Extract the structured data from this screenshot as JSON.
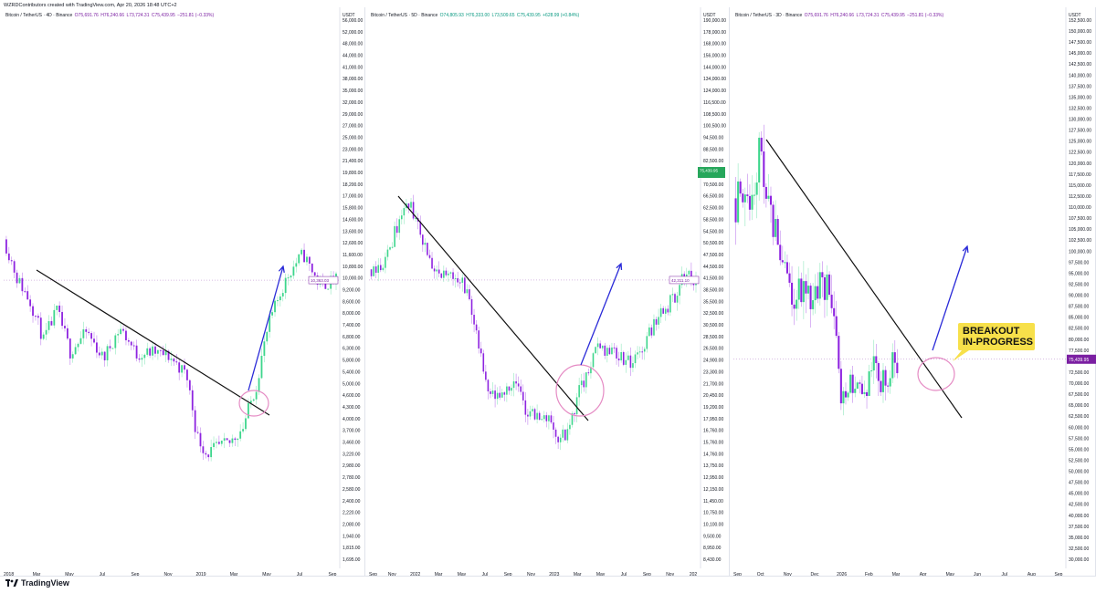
{
  "credit": "WZRDContributors created with TradingView.com, Apr 20, 2026 18:48 UTC+2",
  "brand": "TradingView",
  "colors": {
    "up": "#3dd68c",
    "down": "#8e24e0",
    "trend": "#111111",
    "arrow": "#2a2ad8",
    "circle": "#e58bc4",
    "label_bg": "#f7e04a"
  },
  "panels": [
    {
      "id": "p1",
      "header": {
        "pair": "Bitcoin / TetherUS · 4D · Binance",
        "o": "O75,691.76",
        "h": "H76,240.66",
        "l": "L73,724.31",
        "c": "C75,439.95",
        "chg": "−251.81 (−0.33%)"
      },
      "unit": "USDT",
      "y_ticks": [
        "56,000.00",
        "52,000.00",
        "48,000.00",
        "44,000.00",
        "41,000.00",
        "38,000.00",
        "35,000.00",
        "32,000.00",
        "29,000.00",
        "27,000.00",
        "25,000.00",
        "23,000.00",
        "21,400.00",
        "19,800.00",
        "18,200.00",
        "17,000.00",
        "15,800.00",
        "14,600.00",
        "13,600.00",
        "12,600.00",
        "11,600.00",
        "10,800.00",
        "10,000.00",
        "9,200.00",
        "8,600.00",
        "8,000.00",
        "7,400.00",
        "6,800.00",
        "6,300.00",
        "5,800.00",
        "5,400.00",
        "5,000.00",
        "4,600.00",
        "4,300.00",
        "4,000.00",
        "3,700.00",
        "3,460.00",
        "3,220.00",
        "2,980.00",
        "2,780.00",
        "2,580.00",
        "2,400.00",
        "2,220.00",
        "2,080.00",
        "1,940.00",
        "1,815.00",
        "1,695.00"
      ],
      "x_ticks": [
        "2018",
        "Mar",
        "May",
        "Jul",
        "Sep",
        "Nov",
        "2019",
        "Mar",
        "May",
        "Jul",
        "Sep"
      ],
      "price_tag": "10,363.03"
    },
    {
      "id": "p2",
      "header": {
        "pair": "Bitcoin / TetherUS · 5D · Binance",
        "o": "O74,805.93",
        "h": "H76,333.00",
        "l": "L73,509.65",
        "c": "C75,439.95",
        "chg": "+628.99 (+0.84%)"
      },
      "unit": "USDT",
      "y_ticks": [
        "190,000.00",
        "178,000.00",
        "168,000.00",
        "156,000.00",
        "144,000.00",
        "134,000.00",
        "124,000.00",
        "116,500.00",
        "108,500.00",
        "100,500.00",
        "94,500.00",
        "88,500.00",
        "82,500.00",
        "75,439.95",
        "70,500.00",
        "66,500.00",
        "62,500.00",
        "58,500.00",
        "54,500.00",
        "50,500.00",
        "47,500.00",
        "44,500.00",
        "41,500.00",
        "38,500.00",
        "35,500.00",
        "32,500.00",
        "30,500.00",
        "28,500.00",
        "26,500.00",
        "24,900.00",
        "23,300.00",
        "21,700.00",
        "20,450.00",
        "19,200.00",
        "17,950.00",
        "16,760.00",
        "15,760.00",
        "14,760.00",
        "13,750.00",
        "12,950.00",
        "12,150.00",
        "11,450.00",
        "10,750.00",
        "10,100.00",
        "9,500.00",
        "8,950.00",
        "8,430.00"
      ],
      "x_ticks": [
        "Sep",
        "Nov",
        "2022",
        "Mar",
        "May",
        "Jul",
        "Sep",
        "Nov",
        "2023",
        "Mar",
        "May",
        "Jul",
        "Sep",
        "Nov",
        "202"
      ],
      "price_tag": "42,311.10"
    },
    {
      "id": "p3",
      "header": {
        "pair": "Bitcoin / TetherUS · 3D · Binance",
        "o": "O75,691.76",
        "h": "H76,240.66",
        "l": "L73,724.31",
        "c": "C75,439.95",
        "chg": "−251.81 (−0.33%)"
      },
      "unit": "USDT",
      "y_ticks": [
        "152,500.00",
        "150,000.00",
        "147,500.00",
        "145,000.00",
        "142,500.00",
        "140,000.00",
        "137,500.00",
        "135,000.00",
        "132,500.00",
        "130,000.00",
        "127,500.00",
        "125,000.00",
        "122,500.00",
        "120,000.00",
        "117,500.00",
        "115,000.00",
        "112,500.00",
        "110,000.00",
        "107,500.00",
        "105,000.00",
        "102,500.00",
        "100,000.00",
        "97,500.00",
        "95,000.00",
        "92,500.00",
        "90,000.00",
        "87,500.00",
        "85,000.00",
        "82,500.00",
        "80,000.00",
        "77,500.00",
        "75,000.00",
        "72,500.00",
        "70,000.00",
        "67,500.00",
        "65,000.00",
        "62,500.00",
        "60,000.00",
        "57,500.00",
        "55,000.00",
        "52,500.00",
        "50,000.00",
        "47,500.00",
        "45,000.00",
        "42,500.00",
        "40,000.00",
        "37,500.00",
        "35,000.00",
        "32,500.00",
        "30,000.00"
      ],
      "x_ticks": [
        "Sep",
        "Oct",
        "Nov",
        "Dec",
        "2026",
        "Feb",
        "Mar",
        "Apr",
        "May",
        "Jun",
        "Jul",
        "Aug",
        "Sep"
      ],
      "price_tag": "75,439.95",
      "label_lines": [
        "BREAKOUT",
        "IN-PROGRESS"
      ]
    }
  ],
  "chart_data": [
    {
      "type": "candlestick",
      "title": "Bitcoin / TetherUS · 4D · Binance",
      "ylabel": "USDT",
      "scale": "log",
      "ylim": [
        1695,
        56000
      ],
      "x_range": [
        "2018-01",
        "2019-09"
      ],
      "close_path": [
        [
          0,
          13500
        ],
        [
          0.04,
          10500
        ],
        [
          0.08,
          9000
        ],
        [
          0.12,
          7000
        ],
        [
          0.16,
          8500
        ],
        [
          0.2,
          6500
        ],
        [
          0.25,
          7400
        ],
        [
          0.3,
          6200
        ],
        [
          0.35,
          7600
        ],
        [
          0.4,
          6400
        ],
        [
          0.45,
          6500
        ],
        [
          0.5,
          6300
        ],
        [
          0.55,
          5600
        ],
        [
          0.58,
          3800
        ],
        [
          0.61,
          3350
        ],
        [
          0.64,
          3500
        ],
        [
          0.68,
          3600
        ],
        [
          0.72,
          4000
        ],
        [
          0.76,
          5200
        ],
        [
          0.8,
          7900
        ],
        [
          0.86,
          10900
        ],
        [
          0.9,
          12300
        ],
        [
          0.95,
          10000
        ],
        [
          1.0,
          10363
        ]
      ]
    },
    {
      "type": "candlestick",
      "title": "Bitcoin / TetherUS · 5D · Binance",
      "ylabel": "USDT",
      "scale": "log",
      "ylim": [
        8430,
        190000
      ],
      "x_range": [
        "2021-09",
        "2024-01"
      ],
      "close_path": [
        [
          0,
          45000
        ],
        [
          0.05,
          47000
        ],
        [
          0.1,
          62000
        ],
        [
          0.12,
          66000
        ],
        [
          0.16,
          55000
        ],
        [
          0.2,
          43000
        ],
        [
          0.26,
          44000
        ],
        [
          0.3,
          40000
        ],
        [
          0.33,
          30000
        ],
        [
          0.36,
          22000
        ],
        [
          0.4,
          21000
        ],
        [
          0.44,
          24000
        ],
        [
          0.48,
          20000
        ],
        [
          0.52,
          19000
        ],
        [
          0.55,
          19200
        ],
        [
          0.58,
          16800
        ],
        [
          0.61,
          17500
        ],
        [
          0.64,
          22000
        ],
        [
          0.67,
          24500
        ],
        [
          0.7,
          29000
        ],
        [
          0.75,
          28000
        ],
        [
          0.8,
          26000
        ],
        [
          0.83,
          27500
        ],
        [
          0.88,
          34000
        ],
        [
          0.93,
          38000
        ],
        [
          0.97,
          44000
        ],
        [
          1.0,
          42311
        ]
      ]
    },
    {
      "type": "candlestick",
      "title": "Bitcoin / TetherUS · 3D · Binance",
      "ylabel": "USDT",
      "scale": "linear",
      "ylim": [
        30000,
        152500
      ],
      "x_range": [
        "2025-08",
        "2026-09"
      ],
      "close_path": [
        [
          0,
          112000
        ],
        [
          0.05,
          110000
        ],
        [
          0.1,
          115000
        ],
        [
          0.12,
          124000
        ],
        [
          0.15,
          112000
        ],
        [
          0.2,
          105000
        ],
        [
          0.25,
          92000
        ],
        [
          0.28,
          89000
        ],
        [
          0.3,
          93000
        ],
        [
          0.35,
          88000
        ],
        [
          0.4,
          93000
        ],
        [
          0.45,
          91000
        ],
        [
          0.48,
          78000
        ],
        [
          0.5,
          66000
        ],
        [
          0.55,
          70000
        ],
        [
          0.6,
          68000
        ],
        [
          0.65,
          73000
        ],
        [
          0.68,
          70000
        ],
        [
          0.72,
          72000
        ],
        [
          0.74,
          74000
        ],
        [
          0.76,
          75440
        ]
      ]
    }
  ]
}
